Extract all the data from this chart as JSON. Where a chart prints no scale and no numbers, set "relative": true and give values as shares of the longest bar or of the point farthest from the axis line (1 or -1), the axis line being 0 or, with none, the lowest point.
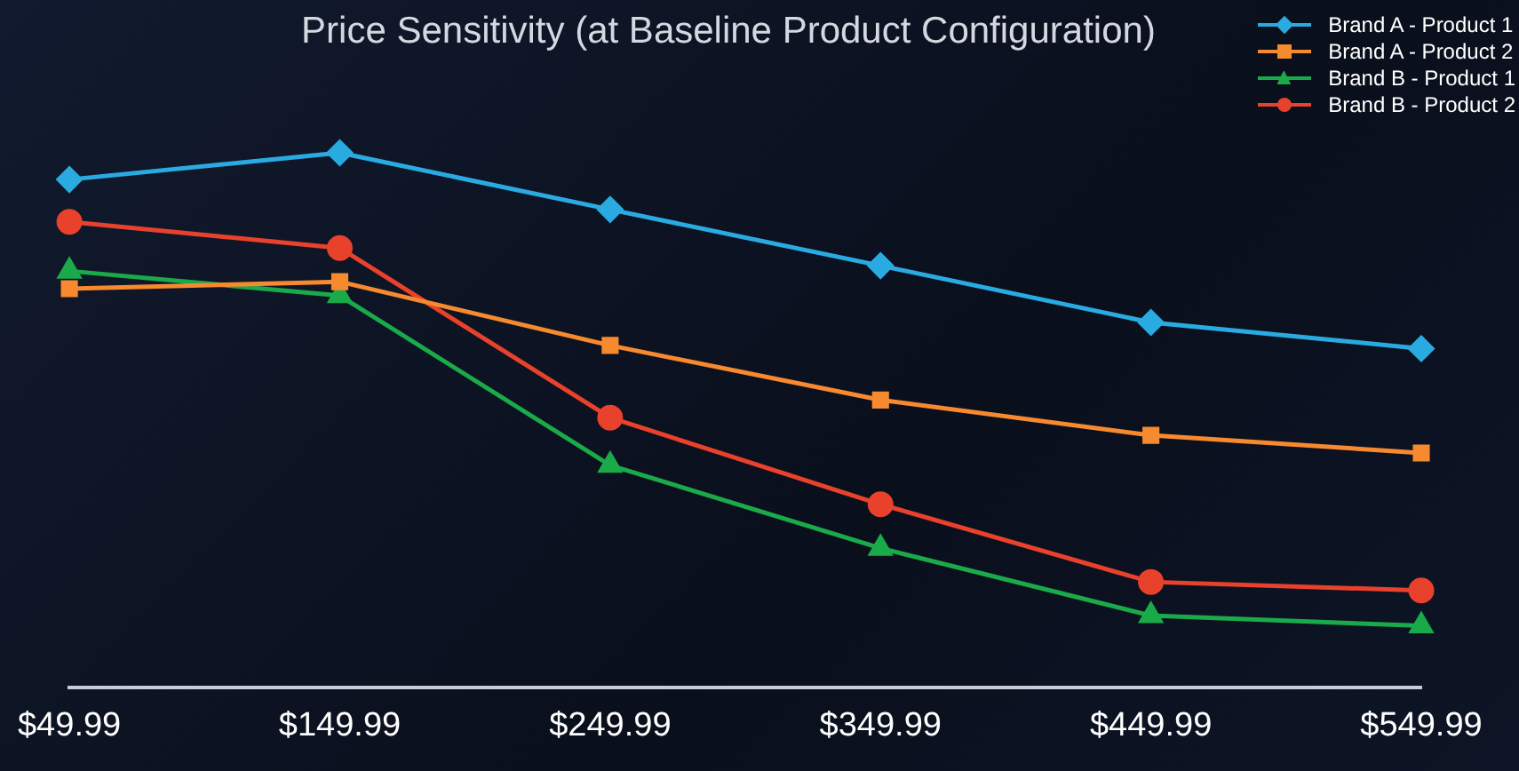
{
  "chart_data": {
    "type": "line",
    "title": "Price Sensitivity (at Baseline Product Configuration)",
    "relative": true,
    "categories": [
      "$49.99",
      "$149.99",
      "$249.99",
      "$349.99",
      "$449.99",
      "$549.99"
    ],
    "legend": "top right",
    "grid": false,
    "series": [
      {
        "name": "Brand A - Product 1",
        "color": "#29abe2",
        "marker": "diamond",
        "values": [
          0.95,
          1,
          0.894,
          0.789,
          0.683,
          0.634
        ]
      },
      {
        "name": "Brand A - Product 2",
        "color": "#f7892f",
        "marker": "square",
        "values": [
          0.746,
          0.759,
          0.64,
          0.538,
          0.472,
          0.439
        ]
      },
      {
        "name": "Brand B - Product 1",
        "color": "#1aaa4a",
        "marker": "triangle",
        "values": [
          0.779,
          0.733,
          0.416,
          0.261,
          0.135,
          0.116
        ]
      },
      {
        "name": "Brand B - Product 2",
        "color": "#e8412c",
        "marker": "circle",
        "values": [
          0.871,
          0.822,
          0.505,
          0.343,
          0.198,
          0.182
        ]
      }
    ]
  }
}
